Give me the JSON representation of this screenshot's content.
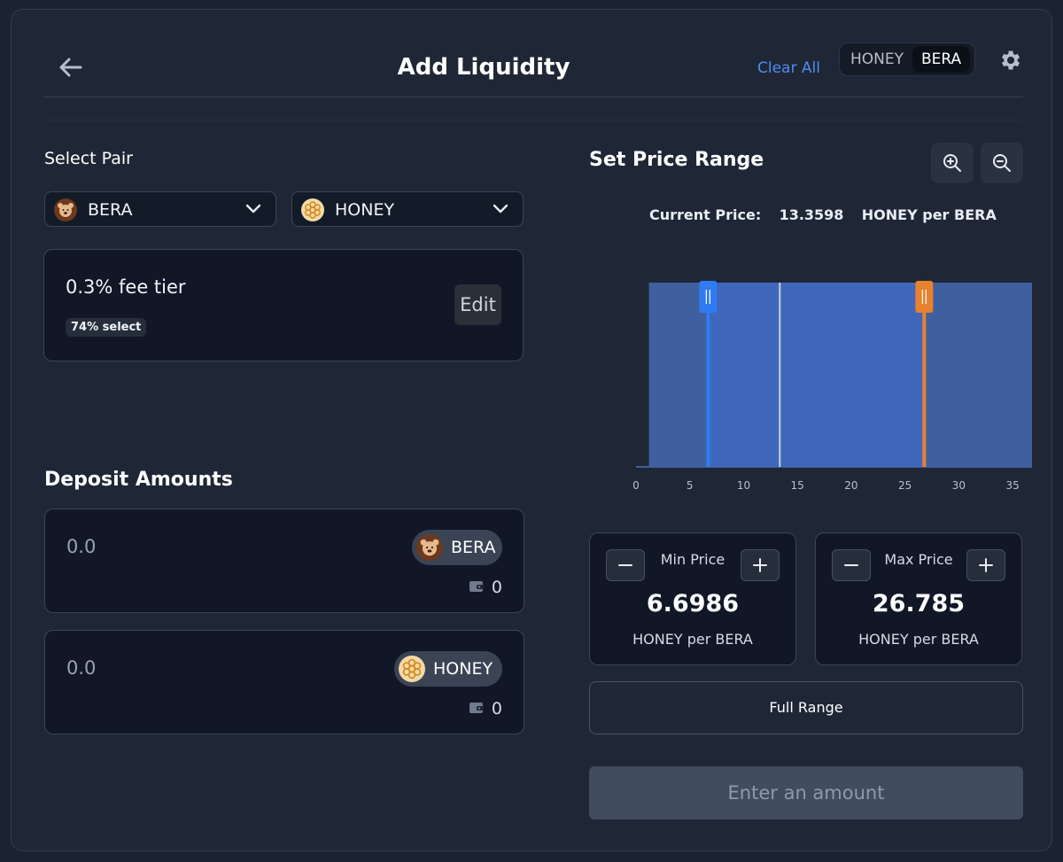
{
  "header": {
    "title": "Add Liquidity",
    "clear_all": "Clear All",
    "toggle": [
      "HONEY",
      "BERA"
    ],
    "toggle_selected": "BERA"
  },
  "select_pair": {
    "label": "Select Pair",
    "token_a": "BERA",
    "token_b": "HONEY"
  },
  "fee": {
    "tier": "0.3% fee tier",
    "badge": "74% select",
    "edit": "Edit"
  },
  "deposit": {
    "label": "Deposit Amounts",
    "rows": [
      {
        "amount": "0.0",
        "token": "BERA",
        "balance": "0"
      },
      {
        "amount": "0.0",
        "token": "HONEY",
        "balance": "0"
      }
    ]
  },
  "price_range": {
    "label": "Set Price Range",
    "current_label": "Current Price:",
    "current_value": "13.3598",
    "current_unit": "HONEY per BERA"
  },
  "chart_data": {
    "type": "area",
    "x_ticks": [
      "0",
      "5",
      "10",
      "15",
      "20",
      "25",
      "30",
      "35"
    ],
    "xlim": [
      0,
      36.8
    ],
    "liquidity": [
      {
        "x_start": 1.2,
        "x_end": 36.8,
        "level": 1.0
      }
    ],
    "current_price": 13.3598,
    "range_min": 6.6986,
    "range_max": 26.785,
    "colors": {
      "liquidity": "#3f5f9e",
      "selected": "#4068c0",
      "min_handle": "#2f7cf2",
      "max_handle": "#e8822e",
      "current": "#c8d0dc"
    }
  },
  "min_price": {
    "label": "Min Price",
    "value": "6.6986",
    "unit": "HONEY per BERA"
  },
  "max_price": {
    "label": "Max Price",
    "value": "26.785",
    "unit": "HONEY per BERA"
  },
  "full_range": "Full Range",
  "submit": "Enter an amount",
  "colors": {
    "accent": "#4f8cf0",
    "background": "#1f2736",
    "card": "#111726"
  }
}
